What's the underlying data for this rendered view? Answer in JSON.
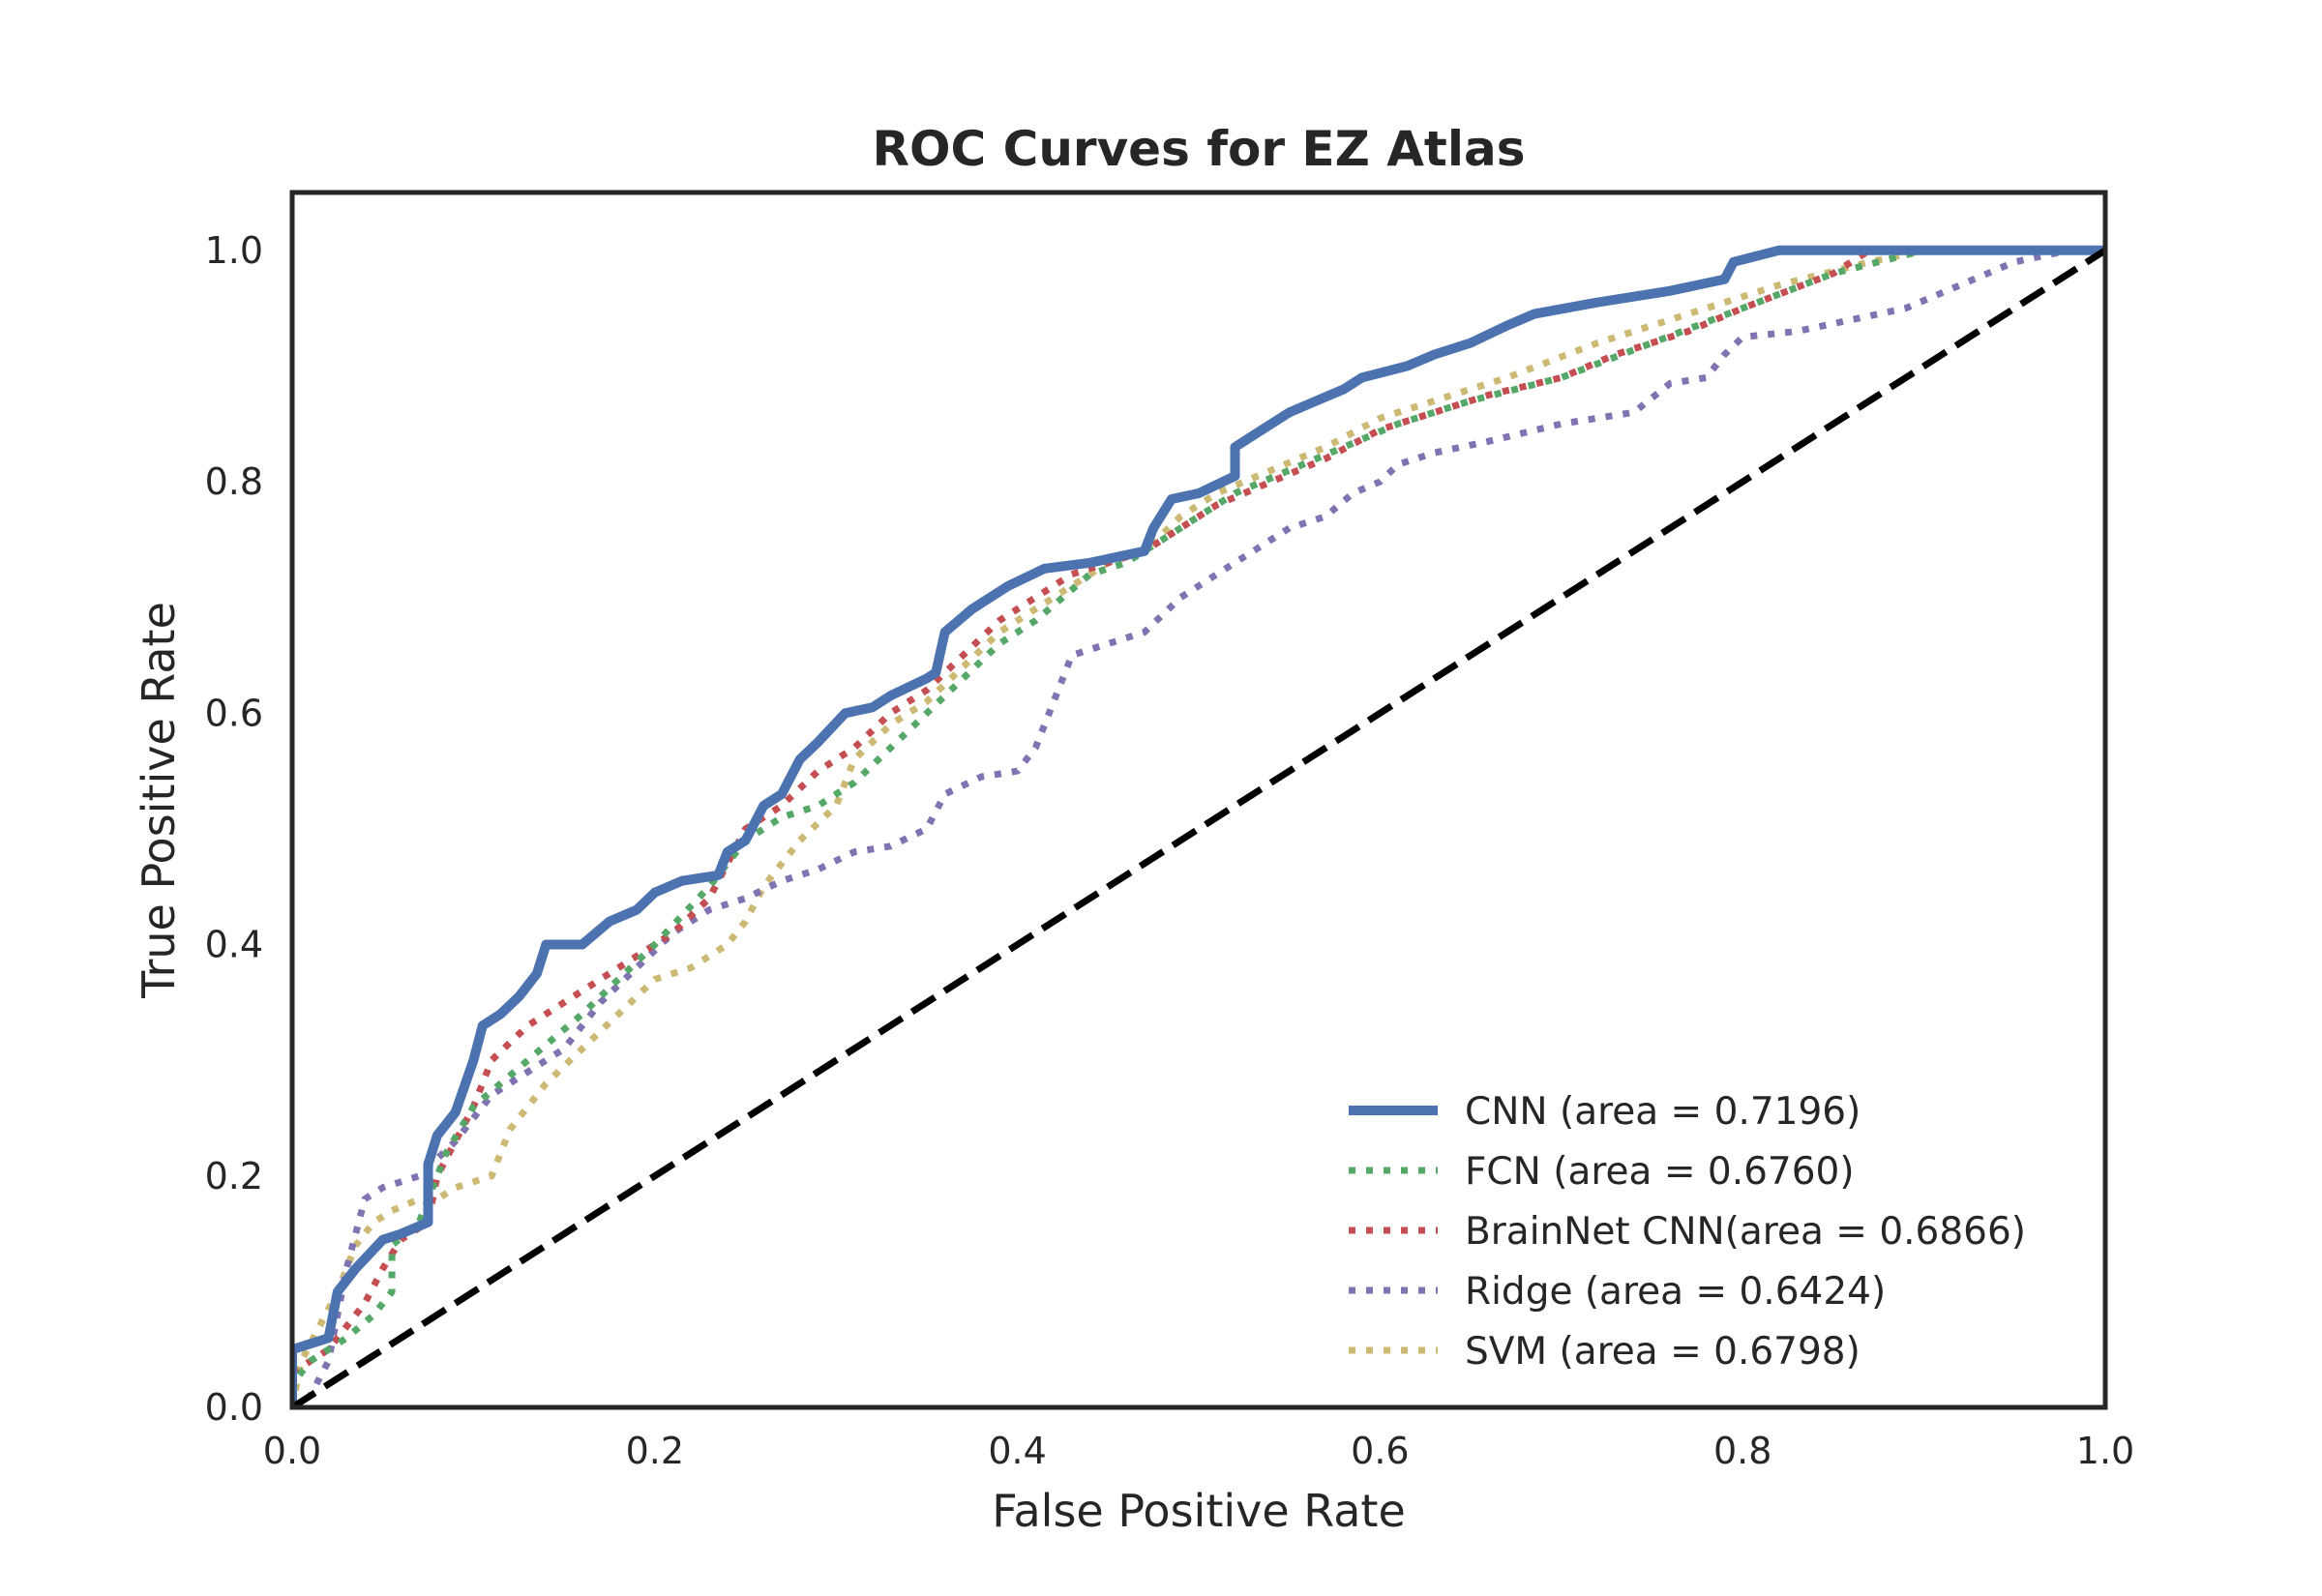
{
  "chart_data": {
    "type": "line",
    "title": "ROC Curves for EZ Atlas",
    "xlabel": "False Positive Rate",
    "ylabel": "True Positive Rate",
    "xlim": [
      0.0,
      1.0
    ],
    "ylim": [
      0.0,
      1.05
    ],
    "x_ticks": [
      "0.0",
      "0.2",
      "0.4",
      "0.6",
      "0.8",
      "1.0"
    ],
    "y_ticks": [
      "0.0",
      "0.2",
      "0.4",
      "0.6",
      "0.8",
      "1.0"
    ],
    "grid": false,
    "legend_position": "lower-right",
    "reference_line": {
      "name": "chance",
      "color": "#000000",
      "style": "dashed",
      "points": [
        [
          0,
          0
        ],
        [
          1,
          1
        ]
      ]
    },
    "series": [
      {
        "name": "CNN",
        "legend_label": "CNN (area = 0.7196)",
        "color": "#4C72B0",
        "style": "solid",
        "points": [
          [
            0,
            0
          ],
          [
            0,
            0.05
          ],
          [
            0.02,
            0.06
          ],
          [
            0.025,
            0.1
          ],
          [
            0.035,
            0.12
          ],
          [
            0.05,
            0.145
          ],
          [
            0.06,
            0.15
          ],
          [
            0.075,
            0.16
          ],
          [
            0.075,
            0.21
          ],
          [
            0.08,
            0.235
          ],
          [
            0.09,
            0.255
          ],
          [
            0.1,
            0.3
          ],
          [
            0.105,
            0.33
          ],
          [
            0.115,
            0.34
          ],
          [
            0.125,
            0.355
          ],
          [
            0.135,
            0.375
          ],
          [
            0.14,
            0.4
          ],
          [
            0.16,
            0.4
          ],
          [
            0.175,
            0.42
          ],
          [
            0.19,
            0.43
          ],
          [
            0.2,
            0.445
          ],
          [
            0.215,
            0.455
          ],
          [
            0.235,
            0.46
          ],
          [
            0.24,
            0.48
          ],
          [
            0.25,
            0.49
          ],
          [
            0.26,
            0.52
          ],
          [
            0.27,
            0.53
          ],
          [
            0.28,
            0.56
          ],
          [
            0.29,
            0.575
          ],
          [
            0.305,
            0.6
          ],
          [
            0.32,
            0.605
          ],
          [
            0.33,
            0.615
          ],
          [
            0.35,
            0.63
          ],
          [
            0.355,
            0.635
          ],
          [
            0.36,
            0.67
          ],
          [
            0.375,
            0.69
          ],
          [
            0.395,
            0.71
          ],
          [
            0.415,
            0.725
          ],
          [
            0.44,
            0.73
          ],
          [
            0.47,
            0.74
          ],
          [
            0.475,
            0.76
          ],
          [
            0.485,
            0.785
          ],
          [
            0.5,
            0.79
          ],
          [
            0.52,
            0.805
          ],
          [
            0.52,
            0.83
          ],
          [
            0.535,
            0.845
          ],
          [
            0.55,
            0.86
          ],
          [
            0.565,
            0.87
          ],
          [
            0.58,
            0.88
          ],
          [
            0.59,
            0.89
          ],
          [
            0.615,
            0.9
          ],
          [
            0.63,
            0.91
          ],
          [
            0.65,
            0.92
          ],
          [
            0.67,
            0.935
          ],
          [
            0.685,
            0.945
          ],
          [
            0.72,
            0.955
          ],
          [
            0.76,
            0.965
          ],
          [
            0.79,
            0.975
          ],
          [
            0.795,
            0.99
          ],
          [
            0.82,
            1.0
          ],
          [
            1.0,
            1.0
          ]
        ]
      },
      {
        "name": "FCN",
        "legend_label": "FCN (area = 0.6760)",
        "color": "#55A868",
        "style": "dotted",
        "points": [
          [
            0,
            0
          ],
          [
            0,
            0.02
          ],
          [
            0.01,
            0.04
          ],
          [
            0.03,
            0.06
          ],
          [
            0.045,
            0.08
          ],
          [
            0.055,
            0.1
          ],
          [
            0.055,
            0.14
          ],
          [
            0.07,
            0.16
          ],
          [
            0.075,
            0.18
          ],
          [
            0.085,
            0.22
          ],
          [
            0.1,
            0.26
          ],
          [
            0.115,
            0.28
          ],
          [
            0.13,
            0.3
          ],
          [
            0.16,
            0.34
          ],
          [
            0.18,
            0.37
          ],
          [
            0.2,
            0.4
          ],
          [
            0.23,
            0.45
          ],
          [
            0.24,
            0.47
          ],
          [
            0.25,
            0.49
          ],
          [
            0.27,
            0.51
          ],
          [
            0.29,
            0.52
          ],
          [
            0.31,
            0.54
          ],
          [
            0.33,
            0.57
          ],
          [
            0.35,
            0.6
          ],
          [
            0.37,
            0.63
          ],
          [
            0.39,
            0.66
          ],
          [
            0.41,
            0.68
          ],
          [
            0.44,
            0.72
          ],
          [
            0.46,
            0.73
          ],
          [
            0.48,
            0.75
          ],
          [
            0.5,
            0.77
          ],
          [
            0.52,
            0.79
          ],
          [
            0.55,
            0.81
          ],
          [
            0.58,
            0.83
          ],
          [
            0.61,
            0.85
          ],
          [
            0.65,
            0.87
          ],
          [
            0.7,
            0.89
          ],
          [
            0.75,
            0.92
          ],
          [
            0.8,
            0.95
          ],
          [
            0.85,
            0.98
          ],
          [
            0.9,
            1.0
          ],
          [
            1.0,
            1.0
          ]
        ]
      },
      {
        "name": "BrainNet CNN",
        "legend_label": "BrainNet CNN(area = 0.6866)",
        "color": "#C44E52",
        "style": "dotted",
        "points": [
          [
            0,
            0
          ],
          [
            0,
            0.03
          ],
          [
            0.02,
            0.05
          ],
          [
            0.04,
            0.09
          ],
          [
            0.05,
            0.12
          ],
          [
            0.06,
            0.145
          ],
          [
            0.075,
            0.16
          ],
          [
            0.08,
            0.2
          ],
          [
            0.09,
            0.23
          ],
          [
            0.1,
            0.26
          ],
          [
            0.11,
            0.3
          ],
          [
            0.13,
            0.33
          ],
          [
            0.15,
            0.35
          ],
          [
            0.17,
            0.37
          ],
          [
            0.19,
            0.39
          ],
          [
            0.21,
            0.41
          ],
          [
            0.23,
            0.44
          ],
          [
            0.24,
            0.47
          ],
          [
            0.25,
            0.5
          ],
          [
            0.27,
            0.52
          ],
          [
            0.29,
            0.55
          ],
          [
            0.31,
            0.57
          ],
          [
            0.33,
            0.6
          ],
          [
            0.35,
            0.62
          ],
          [
            0.37,
            0.65
          ],
          [
            0.39,
            0.68
          ],
          [
            0.41,
            0.7
          ],
          [
            0.43,
            0.72
          ],
          [
            0.45,
            0.73
          ],
          [
            0.47,
            0.74
          ],
          [
            0.49,
            0.76
          ],
          [
            0.51,
            0.78
          ],
          [
            0.54,
            0.8
          ],
          [
            0.57,
            0.82
          ],
          [
            0.6,
            0.845
          ],
          [
            0.63,
            0.86
          ],
          [
            0.66,
            0.875
          ],
          [
            0.7,
            0.89
          ],
          [
            0.73,
            0.91
          ],
          [
            0.77,
            0.93
          ],
          [
            0.8,
            0.95
          ],
          [
            0.85,
            0.98
          ],
          [
            0.87,
            1.0
          ],
          [
            1.0,
            1.0
          ]
        ]
      },
      {
        "name": "Ridge",
        "legend_label": "Ridge (area = 0.6424)",
        "color": "#8172B2",
        "style": "dotted",
        "points": [
          [
            0,
            0
          ],
          [
            0.01,
            0.01
          ],
          [
            0.02,
            0.04
          ],
          [
            0.03,
            0.12
          ],
          [
            0.04,
            0.18
          ],
          [
            0.05,
            0.19
          ],
          [
            0.07,
            0.2
          ],
          [
            0.09,
            0.23
          ],
          [
            0.11,
            0.27
          ],
          [
            0.13,
            0.29
          ],
          [
            0.15,
            0.31
          ],
          [
            0.17,
            0.35
          ],
          [
            0.19,
            0.38
          ],
          [
            0.21,
            0.41
          ],
          [
            0.23,
            0.43
          ],
          [
            0.25,
            0.44
          ],
          [
            0.27,
            0.455
          ],
          [
            0.29,
            0.465
          ],
          [
            0.31,
            0.48
          ],
          [
            0.33,
            0.485
          ],
          [
            0.35,
            0.5
          ],
          [
            0.36,
            0.53
          ],
          [
            0.38,
            0.545
          ],
          [
            0.4,
            0.55
          ],
          [
            0.41,
            0.57
          ],
          [
            0.42,
            0.61
          ],
          [
            0.43,
            0.65
          ],
          [
            0.45,
            0.66
          ],
          [
            0.47,
            0.67
          ],
          [
            0.49,
            0.7
          ],
          [
            0.51,
            0.72
          ],
          [
            0.53,
            0.74
          ],
          [
            0.55,
            0.76
          ],
          [
            0.57,
            0.77
          ],
          [
            0.585,
            0.79
          ],
          [
            0.6,
            0.8
          ],
          [
            0.61,
            0.815
          ],
          [
            0.63,
            0.825
          ],
          [
            0.66,
            0.835
          ],
          [
            0.7,
            0.85
          ],
          [
            0.74,
            0.86
          ],
          [
            0.76,
            0.885
          ],
          [
            0.78,
            0.89
          ],
          [
            0.79,
            0.91
          ],
          [
            0.8,
            0.925
          ],
          [
            0.83,
            0.93
          ],
          [
            0.86,
            0.94
          ],
          [
            0.89,
            0.95
          ],
          [
            0.92,
            0.97
          ],
          [
            0.95,
            0.99
          ],
          [
            0.98,
            1.0
          ],
          [
            1.0,
            1.0
          ]
        ]
      },
      {
        "name": "SVM",
        "legend_label": "SVM (area = 0.6798)",
        "color": "#CCB974",
        "style": "dotted",
        "points": [
          [
            0,
            0
          ],
          [
            0.005,
            0.04
          ],
          [
            0.015,
            0.07
          ],
          [
            0.025,
            0.1
          ],
          [
            0.035,
            0.14
          ],
          [
            0.045,
            0.16
          ],
          [
            0.055,
            0.17
          ],
          [
            0.07,
            0.18
          ],
          [
            0.08,
            0.18
          ],
          [
            0.09,
            0.19
          ],
          [
            0.11,
            0.2
          ],
          [
            0.12,
            0.24
          ],
          [
            0.14,
            0.28
          ],
          [
            0.16,
            0.31
          ],
          [
            0.18,
            0.34
          ],
          [
            0.2,
            0.37
          ],
          [
            0.22,
            0.38
          ],
          [
            0.24,
            0.4
          ],
          [
            0.25,
            0.42
          ],
          [
            0.26,
            0.45
          ],
          [
            0.28,
            0.49
          ],
          [
            0.3,
            0.52
          ],
          [
            0.31,
            0.56
          ],
          [
            0.33,
            0.59
          ],
          [
            0.35,
            0.61
          ],
          [
            0.37,
            0.64
          ],
          [
            0.39,
            0.67
          ],
          [
            0.41,
            0.69
          ],
          [
            0.43,
            0.71
          ],
          [
            0.45,
            0.73
          ],
          [
            0.47,
            0.74
          ],
          [
            0.49,
            0.77
          ],
          [
            0.51,
            0.79
          ],
          [
            0.54,
            0.81
          ],
          [
            0.57,
            0.83
          ],
          [
            0.6,
            0.855
          ],
          [
            0.63,
            0.87
          ],
          [
            0.67,
            0.89
          ],
          [
            0.72,
            0.92
          ],
          [
            0.77,
            0.945
          ],
          [
            0.82,
            0.97
          ],
          [
            0.87,
            0.99
          ],
          [
            0.9,
            1.0
          ],
          [
            1.0,
            1.0
          ]
        ]
      }
    ]
  }
}
